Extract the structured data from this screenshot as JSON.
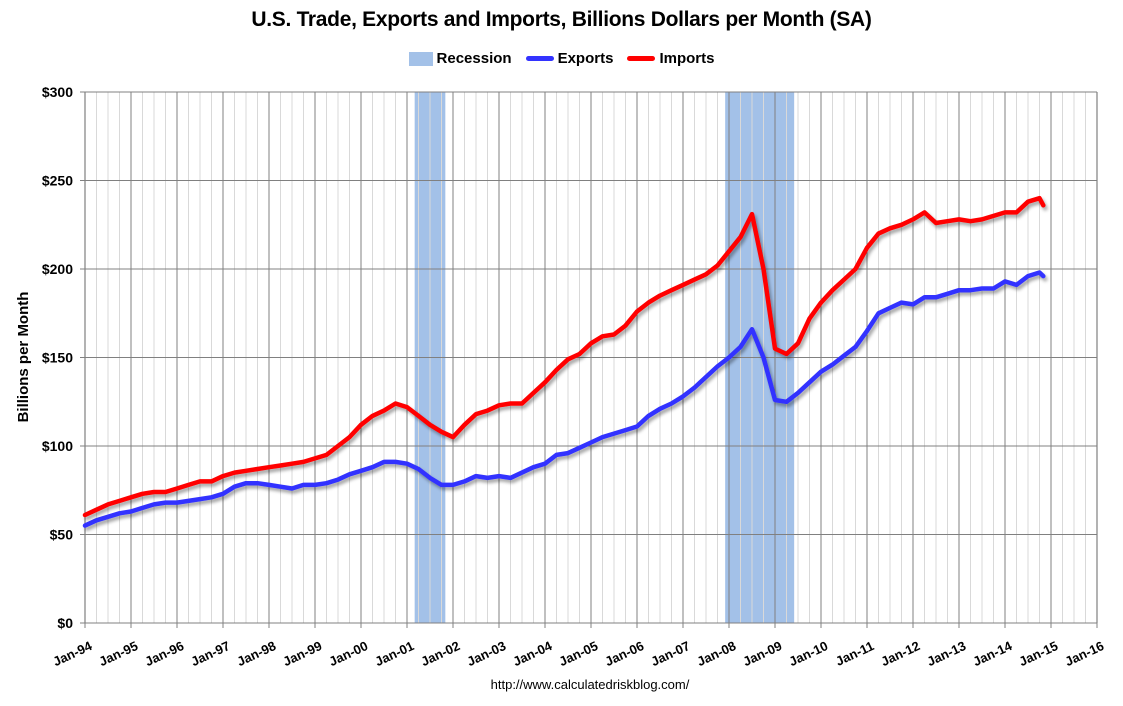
{
  "chart_data": {
    "type": "line",
    "title": "U.S. Trade, Exports and Imports, Billions Dollars per Month (SA)",
    "xlabel": "",
    "ylabel": "Billions per Month",
    "ylim": [
      0,
      300
    ],
    "yticks": [
      "$0",
      "$50",
      "$100",
      "$150",
      "$200",
      "$250",
      "$300"
    ],
    "xticks": [
      "Jan-94",
      "Jan-95",
      "Jan-96",
      "Jan-97",
      "Jan-98",
      "Jan-99",
      "Jan-00",
      "Jan-01",
      "Jan-02",
      "Jan-03",
      "Jan-04",
      "Jan-05",
      "Jan-06",
      "Jan-07",
      "Jan-08",
      "Jan-09",
      "Jan-10",
      "Jan-11",
      "Jan-12",
      "Jan-13",
      "Jan-14",
      "Jan-15",
      "Jan-16"
    ],
    "xrange": [
      "1994-01",
      "2016-01"
    ],
    "grid": true,
    "legend_position": "top",
    "legend": [
      "Recession",
      "Exports",
      "Imports"
    ],
    "recessions": [
      {
        "start": "2001-03",
        "end": "2001-11"
      },
      {
        "start": "2007-12",
        "end": "2009-06"
      }
    ],
    "x": [
      "1994-01",
      "1994-04",
      "1994-07",
      "1994-10",
      "1995-01",
      "1995-04",
      "1995-07",
      "1995-10",
      "1996-01",
      "1996-04",
      "1996-07",
      "1996-10",
      "1997-01",
      "1997-04",
      "1997-07",
      "1997-10",
      "1998-01",
      "1998-04",
      "1998-07",
      "1998-10",
      "1999-01",
      "1999-04",
      "1999-07",
      "1999-10",
      "2000-01",
      "2000-04",
      "2000-07",
      "2000-10",
      "2001-01",
      "2001-04",
      "2001-07",
      "2001-10",
      "2002-01",
      "2002-04",
      "2002-07",
      "2002-10",
      "2003-01",
      "2003-04",
      "2003-07",
      "2003-10",
      "2004-01",
      "2004-04",
      "2004-07",
      "2004-10",
      "2005-01",
      "2005-04",
      "2005-07",
      "2005-10",
      "2006-01",
      "2006-04",
      "2006-07",
      "2006-10",
      "2007-01",
      "2007-04",
      "2007-07",
      "2007-10",
      "2008-01",
      "2008-04",
      "2008-07",
      "2008-10",
      "2009-01",
      "2009-04",
      "2009-07",
      "2009-10",
      "2010-01",
      "2010-04",
      "2010-07",
      "2010-10",
      "2011-01",
      "2011-04",
      "2011-07",
      "2011-10",
      "2012-01",
      "2012-04",
      "2012-07",
      "2012-10",
      "2013-01",
      "2013-04",
      "2013-07",
      "2013-10",
      "2014-01",
      "2014-04",
      "2014-07",
      "2014-10",
      "2014-11"
    ],
    "series": [
      {
        "name": "Exports",
        "color": "#3333ff",
        "values": [
          55,
          58,
          60,
          62,
          63,
          65,
          67,
          68,
          68,
          69,
          70,
          71,
          73,
          77,
          79,
          79,
          78,
          77,
          76,
          78,
          78,
          79,
          81,
          84,
          86,
          88,
          91,
          91,
          90,
          87,
          82,
          78,
          78,
          80,
          83,
          82,
          83,
          82,
          85,
          88,
          90,
          95,
          96,
          99,
          102,
          105,
          107,
          109,
          111,
          117,
          121,
          124,
          128,
          133,
          139,
          145,
          150,
          156,
          166,
          150,
          126,
          125,
          130,
          136,
          142,
          146,
          151,
          156,
          165,
          175,
          178,
          181,
          180,
          184,
          184,
          186,
          188,
          188,
          189,
          189,
          193,
          191,
          196,
          198,
          196
        ]
      },
      {
        "name": "Imports",
        "color": "#ff0000",
        "values": [
          61,
          64,
          67,
          69,
          71,
          73,
          74,
          74,
          76,
          78,
          80,
          80,
          83,
          85,
          86,
          87,
          88,
          89,
          90,
          91,
          93,
          95,
          100,
          105,
          112,
          117,
          120,
          124,
          122,
          117,
          112,
          108,
          105,
          112,
          118,
          120,
          123,
          124,
          124,
          130,
          136,
          143,
          149,
          152,
          158,
          162,
          163,
          168,
          176,
          181,
          185,
          188,
          191,
          194,
          197,
          202,
          210,
          218,
          231,
          200,
          155,
          152,
          158,
          172,
          181,
          188,
          194,
          200,
          212,
          220,
          223,
          225,
          228,
          232,
          226,
          227,
          228,
          227,
          228,
          230,
          232,
          232,
          238,
          240,
          236
        ]
      }
    ]
  },
  "header": {
    "title": "U.S. Trade, Exports and Imports, Billions Dollars per Month (SA)"
  },
  "legend": {
    "recession_label": "Recession",
    "exports_label": "Exports",
    "imports_label": "Imports",
    "recession_color": "#a3c1e8",
    "exports_color": "#3333ff",
    "imports_color": "#ff0000"
  },
  "footer": {
    "source": "http://www.calculatedriskblog.com/"
  }
}
